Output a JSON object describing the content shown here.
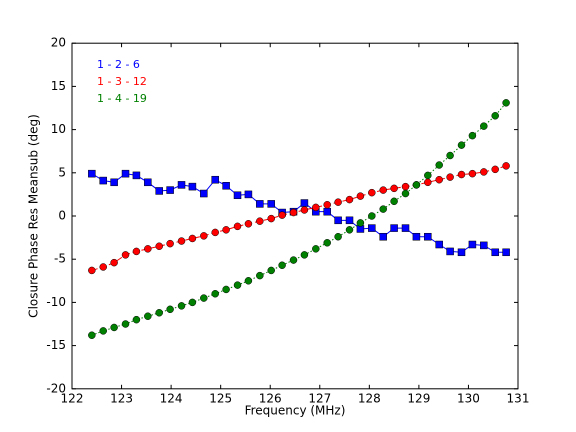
{
  "chart_data": {
    "type": "line",
    "xlabel": "Frequency (MHz)",
    "ylabel": "Closure Phase Res Meansub (deg)",
    "x": [
      122.4,
      122.63,
      122.85,
      123.08,
      123.3,
      123.53,
      123.76,
      123.98,
      124.21,
      124.43,
      124.66,
      124.89,
      125.11,
      125.34,
      125.56,
      125.79,
      126.02,
      126.24,
      126.47,
      126.69,
      126.92,
      127.15,
      127.37,
      127.6,
      127.82,
      128.05,
      128.28,
      128.5,
      128.73,
      128.95,
      129.18,
      129.41,
      129.63,
      129.86,
      130.08,
      130.31,
      130.54,
      130.76
    ],
    "series": [
      {
        "name": "1 - 2 - 6",
        "color": "#0000ff",
        "marker": "square",
        "linestyle": "solid",
        "values": [
          4.9,
          4.1,
          3.9,
          4.9,
          4.7,
          3.9,
          2.9,
          3.0,
          3.6,
          3.4,
          2.6,
          4.2,
          3.5,
          2.4,
          2.5,
          1.4,
          1.4,
          0.4,
          0.5,
          1.5,
          0.5,
          0.5,
          -0.5,
          -0.5,
          -1.5,
          -1.4,
          -2.4,
          -1.4,
          -1.4,
          -2.4,
          -2.4,
          -3.3,
          -4.1,
          -4.2,
          -3.3,
          -3.4,
          -4.2,
          -4.2
        ]
      },
      {
        "name": "1 - 3 - 12",
        "color": "#ff0000",
        "marker": "circle",
        "linestyle": "dashed",
        "values": [
          -6.3,
          -5.9,
          -5.4,
          -4.5,
          -4.1,
          -3.8,
          -3.5,
          -3.2,
          -2.9,
          -2.6,
          -2.3,
          -1.9,
          -1.6,
          -1.2,
          -0.9,
          -0.6,
          -0.3,
          0.1,
          0.4,
          0.7,
          1.0,
          1.3,
          1.6,
          1.9,
          2.3,
          2.7,
          3.0,
          3.2,
          3.4,
          3.6,
          3.9,
          4.2,
          4.5,
          4.8,
          4.9,
          5.1,
          5.4,
          5.8
        ]
      },
      {
        "name": "1 - 4 - 19",
        "color": "#008000",
        "marker": "circle",
        "linestyle": "dotted",
        "values": [
          -13.8,
          -13.3,
          -12.9,
          -12.5,
          -12.0,
          -11.6,
          -11.2,
          -10.8,
          -10.4,
          -10.0,
          -9.5,
          -9.0,
          -8.5,
          -8.0,
          -7.5,
          -6.9,
          -6.3,
          -5.7,
          -5.1,
          -4.5,
          -3.8,
          -3.1,
          -2.4,
          -1.6,
          -0.8,
          0.0,
          0.8,
          1.7,
          2.6,
          3.6,
          4.7,
          5.9,
          7.0,
          8.2,
          9.3,
          10.4,
          11.6,
          13.1
        ]
      }
    ],
    "xlim": [
      122,
      131
    ],
    "xticks": [
      122,
      123,
      124,
      125,
      126,
      127,
      128,
      129,
      130,
      131
    ],
    "ylim": [
      -20,
      20
    ],
    "yticks": [
      -20,
      -15,
      -10,
      -5,
      0,
      5,
      10,
      15,
      20
    ],
    "grid": false,
    "legend": "upper left"
  }
}
